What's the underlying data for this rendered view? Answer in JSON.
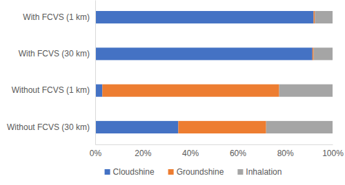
{
  "chart_data": {
    "type": "bar",
    "orientation": "horizontal",
    "stacked": true,
    "grid": false,
    "legend": "bottom",
    "categories": [
      "With FCVS (1 km)",
      "With FCVS (30 km)",
      "Without FCVS (1 km)",
      "Without FCVS (30 km)"
    ],
    "series": [
      {
        "name": "Cloudshine",
        "color": "#4472c4",
        "values": [
          92,
          91.5,
          3,
          35
        ]
      },
      {
        "name": "Groundshine",
        "color": "#ed7d31",
        "values": [
          0.5,
          0.5,
          74.5,
          37
        ]
      },
      {
        "name": "Inhalation",
        "color": "#a5a5a5",
        "values": [
          7.5,
          8,
          22.5,
          28
        ]
      }
    ],
    "xlim": [
      0,
      100
    ],
    "xticks": [
      {
        "value": 0,
        "label": "0%"
      },
      {
        "value": 20,
        "label": "20%"
      },
      {
        "value": 40,
        "label": "40%"
      },
      {
        "value": 60,
        "label": "60%"
      },
      {
        "value": 80,
        "label": "80%"
      },
      {
        "value": 100,
        "label": "100%"
      }
    ]
  }
}
